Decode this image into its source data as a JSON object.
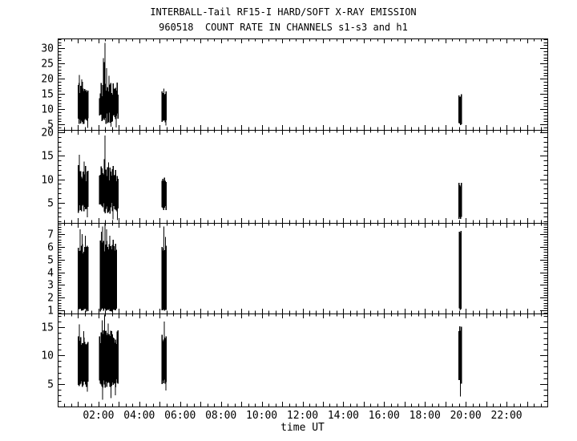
{
  "header": {
    "title": "INTERBALL-Tail RF15-I HARD/SOFT X-RAY EMISSION",
    "subtitle": "960518  COUNT RATE IN CHANNELS s1-s3 and h1"
  },
  "chart_data": {
    "type": "line",
    "title": "INTERBALL-Tail RF15-I HARD/SOFT X-RAY EMISSION",
    "subtitle": "960518  COUNT RATE IN CHANNELS s1-s3 and h1",
    "xlabel": "time UT",
    "background": "#ffffff",
    "foreground": "#000000",
    "xlim": [
      0,
      24
    ],
    "x_major_tick_hours": 1,
    "x_minor_tick_hours": 0.33333,
    "xtick_label_hours": [
      2,
      4,
      6,
      8,
      10,
      12,
      14,
      16,
      18,
      20,
      22
    ],
    "xtick_labels": [
      "02:00",
      "04:00",
      "06:00",
      "08:00",
      "10:00",
      "12:00",
      "14:00",
      "16:00",
      "18:00",
      "20:00",
      "22:00"
    ],
    "panels": [
      {
        "channel": "s1",
        "ylim": [
          3.2,
          33.2
        ],
        "yticks": [
          5,
          10,
          15,
          20,
          25,
          30
        ],
        "ytick_major_step": 5,
        "ytick_minor_step": 1,
        "bursts": [
          {
            "t0": 1.02,
            "t1": 1.53,
            "lo": [
              4.8,
              7.5
            ],
            "hi": [
              14.5,
              19.0
            ],
            "spikes": [
              [
                1.07,
                21.2
              ],
              [
                1.18,
                19.8
              ]
            ],
            "down": [
              [
                1.48,
                3.9
              ]
            ]
          },
          {
            "t0": 2.05,
            "t1": 2.98,
            "lo": [
              5.0,
              9.0
            ],
            "hi": [
              13.5,
              19.0
            ],
            "spikes": [
              [
                2.24,
                26.8
              ],
              [
                2.28,
                25.5
              ],
              [
                2.32,
                31.8
              ],
              [
                2.4,
                23.5
              ],
              [
                2.52,
                21.0
              ]
            ],
            "down": [
              [
                2.62,
                4.2
              ],
              [
                2.86,
                4.0
              ]
            ]
          },
          {
            "t0": 5.12,
            "t1": 5.34,
            "lo": [
              5.2,
              6.6
            ],
            "hi": [
              14.0,
              16.3
            ],
            "spikes": [
              [
                5.2,
                16.8
              ]
            ],
            "down": [
              [
                5.3,
                4.6
              ]
            ]
          },
          {
            "t0": 19.66,
            "t1": 19.8,
            "lo": [
              4.7,
              5.6
            ],
            "hi": [
              13.5,
              15.1
            ],
            "spikes": [],
            "down": []
          }
        ]
      },
      {
        "channel": "s2",
        "ylim": [
          0.7,
          20.5
        ],
        "yticks": [
          5,
          10,
          15,
          20
        ],
        "ytick_major_step": 5,
        "ytick_minor_step": 1,
        "bursts": [
          {
            "t0": 1.02,
            "t1": 1.53,
            "lo": [
              2.8,
              4.6
            ],
            "hi": [
              9.5,
              13.0
            ],
            "spikes": [
              [
                1.07,
                15.2
              ],
              [
                1.3,
                13.8
              ]
            ],
            "down": [
              [
                1.45,
                1.9
              ]
            ]
          },
          {
            "t0": 2.05,
            "t1": 2.98,
            "lo": [
              2.6,
              5.0
            ],
            "hi": [
              9.5,
              12.8
            ],
            "spikes": [
              [
                2.27,
                14.3
              ],
              [
                2.32,
                19.3
              ],
              [
                2.5,
                13.6
              ]
            ],
            "down": [
              [
                2.72,
                1.5
              ],
              [
                2.92,
                1.3
              ]
            ]
          },
          {
            "t0": 5.12,
            "t1": 5.34,
            "lo": [
              3.4,
              4.3
            ],
            "hi": [
              9.4,
              10.5
            ],
            "spikes": [],
            "down": []
          },
          {
            "t0": 19.66,
            "t1": 19.8,
            "lo": [
              1.2,
              2.1
            ],
            "hi": [
              8.4,
              9.4
            ],
            "spikes": [],
            "down": []
          }
        ]
      },
      {
        "channel": "s3",
        "ylim": [
          0.75,
          7.9
        ],
        "yticks": [
          1,
          2,
          3,
          4,
          5,
          6,
          7
        ],
        "ytick_major_step": 1,
        "ytick_minor_step": 0.2,
        "bursts": [
          {
            "t0": 1.02,
            "t1": 1.5,
            "lo": [
              0.9,
              1.15
            ],
            "hi": [
              5.3,
              6.3
            ],
            "spikes": [
              [
                1.1,
                7.4
              ],
              [
                1.2,
                7.0
              ],
              [
                1.35,
                6.9
              ]
            ],
            "down": []
          },
          {
            "t0": 2.1,
            "t1": 2.92,
            "lo": [
              0.85,
              1.15
            ],
            "hi": [
              5.5,
              6.6
            ],
            "spikes": [
              [
                2.14,
                7.2
              ],
              [
                2.2,
                7.6
              ],
              [
                2.32,
                7.85
              ],
              [
                2.4,
                7.4
              ],
              [
                2.56,
                6.9
              ]
            ],
            "down": []
          },
          {
            "t0": 5.12,
            "t1": 5.34,
            "lo": [
              0.95,
              1.15
            ],
            "hi": [
              5.6,
              6.3
            ],
            "spikes": [
              [
                5.2,
                7.6
              ],
              [
                5.28,
                6.8
              ]
            ],
            "down": []
          },
          {
            "t0": 19.68,
            "t1": 19.78,
            "lo": [
              1.0,
              1.2
            ],
            "hi": [
              6.9,
              7.35
            ],
            "spikes": [],
            "down": []
          }
        ]
      },
      {
        "channel": "h1",
        "ylim": [
          1.0,
          17.4
        ],
        "yticks": [
          5,
          10,
          15
        ],
        "ytick_major_step": 5,
        "ytick_minor_step": 1,
        "bursts": [
          {
            "t0": 1.02,
            "t1": 1.53,
            "lo": [
              4.4,
              6.0
            ],
            "hi": [
              11.8,
              13.4
            ],
            "spikes": [
              [
                1.07,
                15.5
              ],
              [
                1.27,
                14.3
              ]
            ],
            "down": [
              [
                1.46,
                3.6
              ]
            ]
          },
          {
            "t0": 2.05,
            "t1": 2.98,
            "lo": [
              4.2,
              6.0
            ],
            "hi": [
              12.0,
              14.5
            ],
            "spikes": [
              [
                2.18,
                16.2
              ],
              [
                2.3,
                17.2
              ],
              [
                2.47,
                15.6
              ]
            ],
            "down": [
              [
                2.2,
                2.2
              ],
              [
                2.62,
                2.5
              ],
              [
                2.82,
                3.0
              ]
            ]
          },
          {
            "t0": 5.12,
            "t1": 5.34,
            "lo": [
              4.7,
              5.9
            ],
            "hi": [
              12.3,
              13.8
            ],
            "spikes": [
              [
                5.22,
                16.0
              ]
            ],
            "down": [
              [
                5.3,
                3.8
              ]
            ]
          },
          {
            "t0": 19.66,
            "t1": 19.8,
            "lo": [
              4.9,
              6.0
            ],
            "hi": [
              14.0,
              15.5
            ],
            "spikes": [],
            "down": [
              [
                19.74,
                2.8
              ]
            ]
          }
        ]
      }
    ]
  }
}
